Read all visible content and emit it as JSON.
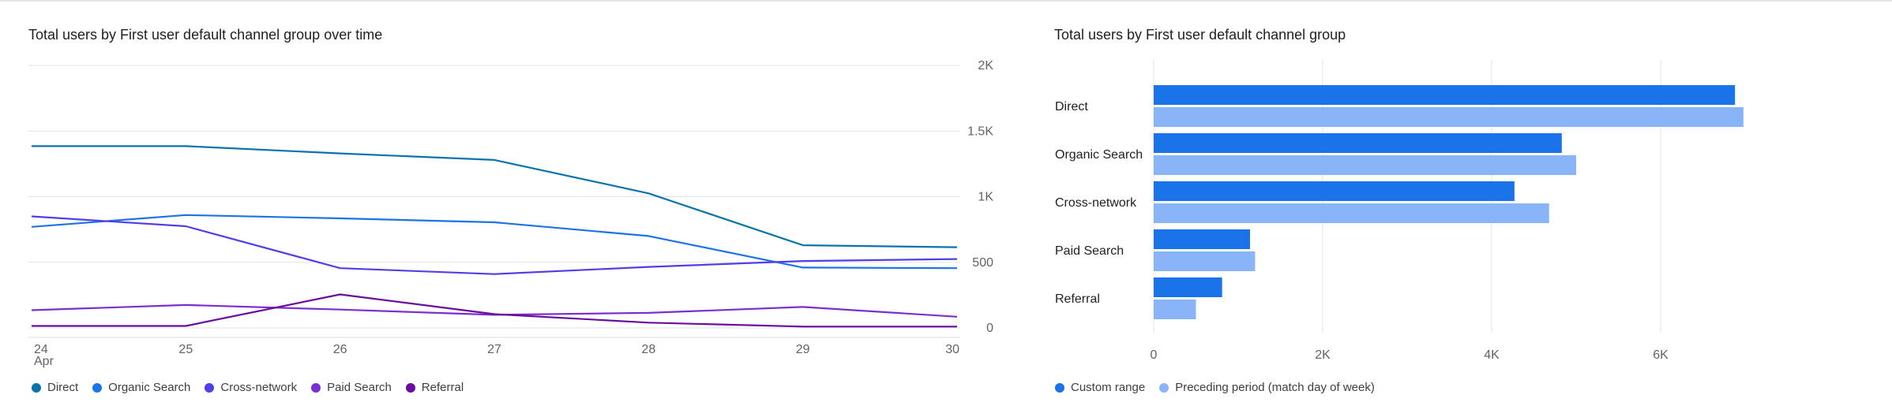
{
  "line_panel": {
    "title": "Total users by First user default channel group over time",
    "legend": [
      {
        "label": "Direct",
        "color": "#0a73ac"
      },
      {
        "label": "Organic Search",
        "color": "#1a73e8"
      },
      {
        "label": "Cross-network",
        "color": "#4f3fe8"
      },
      {
        "label": "Paid Search",
        "color": "#7b2fd0"
      },
      {
        "label": "Referral",
        "color": "#6a0d9f"
      }
    ]
  },
  "bar_panel": {
    "title": "Total users by First user default channel group",
    "legend": [
      {
        "label": "Custom range",
        "color": "#1a73e8"
      },
      {
        "label": "Preceding period (match day of week)",
        "color": "#8ab4f8"
      }
    ]
  },
  "chart_data": [
    {
      "type": "line",
      "title": "Total users by First user default channel group over time",
      "x": [
        "24",
        "25",
        "26",
        "27",
        "28",
        "29",
        "30"
      ],
      "x_sublabel": "Apr",
      "y_ticks": [
        "0",
        "500",
        "1K",
        "1.5K",
        "2K"
      ],
      "ylim": [
        0,
        2000
      ],
      "y_axis_position": "right",
      "grid": true,
      "legend_position": "bottom-left",
      "series": [
        {
          "name": "Direct",
          "color": "#0a73ac",
          "values": [
            1385,
            1385,
            1330,
            1280,
            1025,
            630,
            615
          ]
        },
        {
          "name": "Organic Search",
          "color": "#1a73e8",
          "values": [
            770,
            860,
            835,
            805,
            700,
            460,
            455
          ]
        },
        {
          "name": "Cross-network",
          "color": "#4f3fe8",
          "values": [
            850,
            775,
            455,
            410,
            465,
            510,
            525
          ]
        },
        {
          "name": "Paid Search",
          "color": "#7b2fd0",
          "values": [
            135,
            175,
            140,
            100,
            115,
            160,
            85
          ]
        },
        {
          "name": "Referral",
          "color": "#6a0d9f",
          "values": [
            15,
            15,
            255,
            105,
            40,
            10,
            10
          ]
        }
      ]
    },
    {
      "type": "bar",
      "orientation": "horizontal",
      "title": "Total users by First user default channel group",
      "categories": [
        "Direct",
        "Organic Search",
        "Cross-network",
        "Paid Search",
        "Referral"
      ],
      "x_ticks": [
        "0",
        "2K",
        "4K",
        "6K"
      ],
      "xlim": [
        0,
        7000
      ],
      "grid": true,
      "legend_position": "bottom-left",
      "series": [
        {
          "name": "Custom range",
          "color": "#1a73e8",
          "values": [
            6880,
            4830,
            4270,
            1140,
            810
          ]
        },
        {
          "name": "Preceding period (match day of week)",
          "color": "#8ab4f8",
          "values": [
            6980,
            5000,
            4680,
            1200,
            500
          ]
        }
      ]
    }
  ]
}
